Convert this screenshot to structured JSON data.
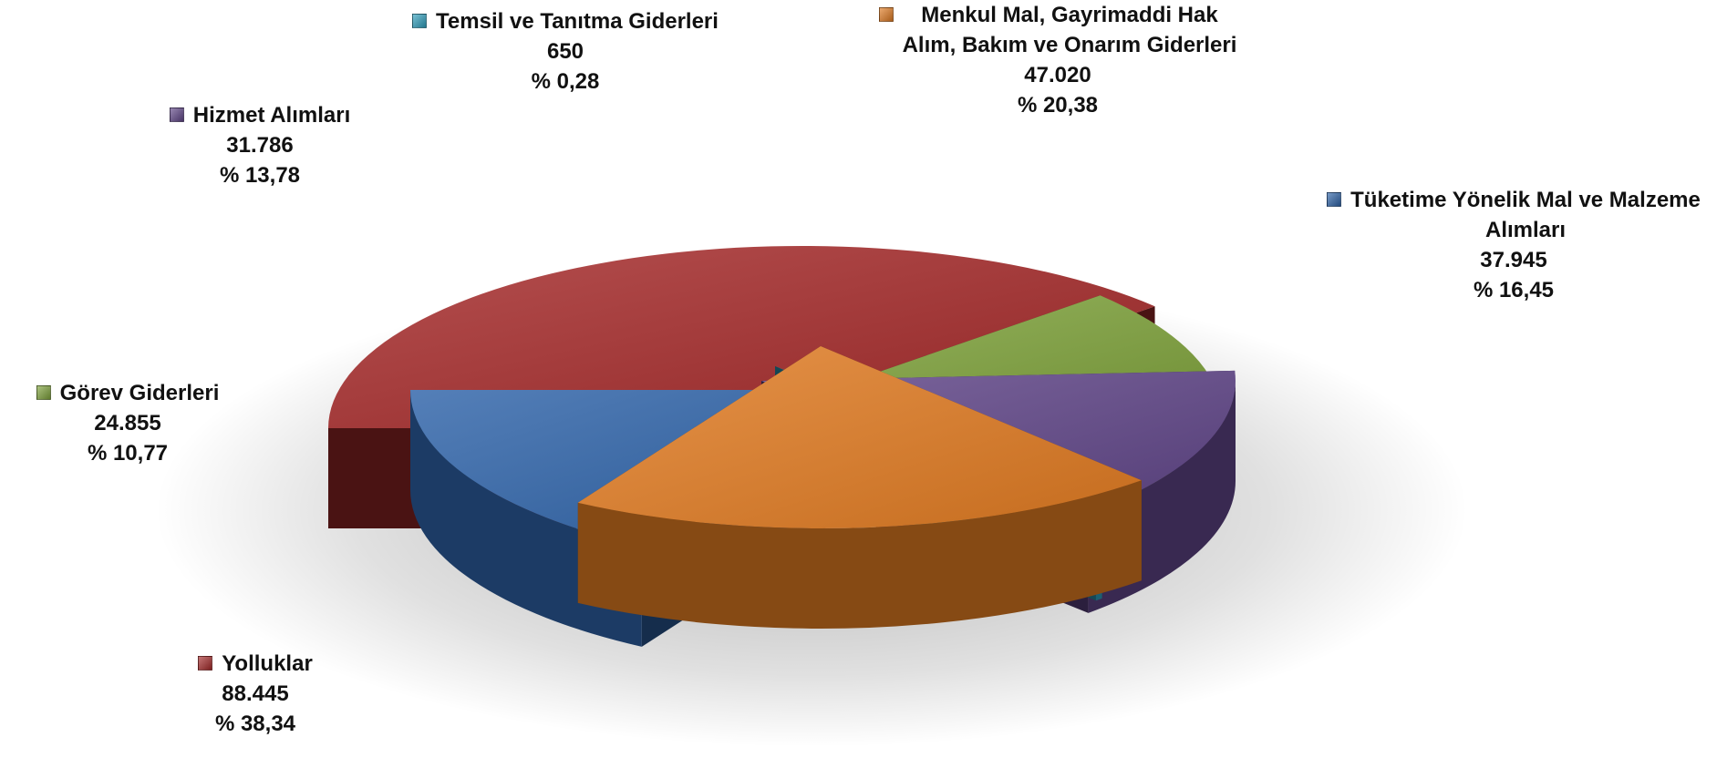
{
  "chart_data": {
    "type": "pie",
    "title": "",
    "slices": [
      {
        "label": "Yolluklar",
        "value": 88445,
        "value_text": "88.445",
        "percent_text": "% 38,34",
        "color": "#a52a2a"
      },
      {
        "label": "Görev Giderleri",
        "value": 24855,
        "value_text": "24.855",
        "percent_text": "% 10,77",
        "color": "#7fa33c"
      },
      {
        "label": "Hizmet Alımları",
        "value": 31786,
        "value_text": "31.786",
        "percent_text": "% 13,78",
        "color": "#5f4587"
      },
      {
        "label": "Temsil ve Tanıtma Giderleri",
        "value": 650,
        "value_text": "650",
        "percent_text": "% 0,28",
        "color": "#2f9fbd"
      },
      {
        "label": "Menkul Mal, Gayrimaddi Hak Alım, Bakım ve Onarım Giderleri",
        "label_lines": [
          "Menkul Mal, Gayrimaddi Hak",
          "Alım, Bakım ve Onarım Giderleri"
        ],
        "value": 47020,
        "value_text": "47.020",
        "percent_text": "% 20,38",
        "color": "#e07b22"
      },
      {
        "label": "Tüketime Yönelik Mal ve Malzeme Alımları",
        "label_lines": [
          "Tüketime Yönelik Mal ve Malzeme",
          "Alımları"
        ],
        "value": 37945,
        "value_text": "37.945",
        "percent_text": "% 16,45",
        "color": "#2e63a8"
      }
    ],
    "legend": "labels beside slices",
    "exploded": true,
    "three_d": true
  }
}
